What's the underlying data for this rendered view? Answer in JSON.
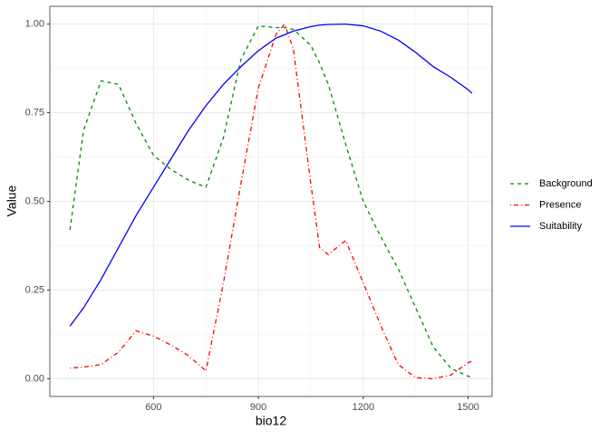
{
  "chart_data": {
    "type": "line",
    "x_label": "bio12",
    "y_label": "Value",
    "x": [
      361,
      400,
      450,
      500,
      550,
      600,
      650,
      700,
      750,
      800,
      850,
      900,
      950,
      975,
      1000,
      1050,
      1075,
      1100,
      1150,
      1200,
      1250,
      1300,
      1350,
      1400,
      1450,
      1500,
      1511
    ],
    "series": [
      {
        "name": "Background",
        "color": "#008b00",
        "linetype": "dashed",
        "values": [
          0.42,
          0.7,
          0.84,
          0.83,
          0.72,
          0.63,
          0.59,
          0.56,
          0.54,
          0.68,
          0.9,
          0.995,
          0.99,
          0.99,
          0.985,
          0.94,
          0.89,
          0.83,
          0.66,
          0.5,
          0.4,
          0.31,
          0.2,
          0.09,
          0.03,
          0.007,
          0.004
        ]
      },
      {
        "name": "Presence",
        "color": "#ff0000",
        "linetype": "dotdash",
        "values": [
          0.03,
          0.033,
          0.04,
          0.075,
          0.135,
          0.12,
          0.095,
          0.065,
          0.022,
          0.27,
          0.55,
          0.82,
          0.97,
          1.0,
          0.93,
          0.55,
          0.37,
          0.35,
          0.39,
          0.27,
          0.15,
          0.04,
          0.003,
          0.0,
          0.01,
          0.045,
          0.05
        ]
      },
      {
        "name": "Suitability",
        "color": "#0000ff",
        "linetype": "solid",
        "values": [
          0.148,
          0.2,
          0.28,
          0.37,
          0.46,
          0.54,
          0.62,
          0.7,
          0.77,
          0.83,
          0.88,
          0.925,
          0.96,
          0.97,
          0.98,
          0.993,
          0.997,
          0.999,
          1.0,
          0.995,
          0.98,
          0.955,
          0.92,
          0.88,
          0.85,
          0.815,
          0.805
        ]
      }
    ],
    "xlim": [
      303.5,
      1568.5
    ],
    "xticks": [
      600,
      900,
      1200,
      1500
    ],
    "ylim": [
      -0.05,
      1.05
    ],
    "yticks": [
      {
        "value": 0,
        "label": "0.00"
      },
      {
        "value": 0.25,
        "label": "0.25"
      },
      {
        "value": 0.5,
        "label": "0.50"
      },
      {
        "value": 0.75,
        "label": "0.75"
      },
      {
        "value": 1,
        "label": "1.00"
      }
    ],
    "grid": true,
    "legend_position": "right"
  }
}
